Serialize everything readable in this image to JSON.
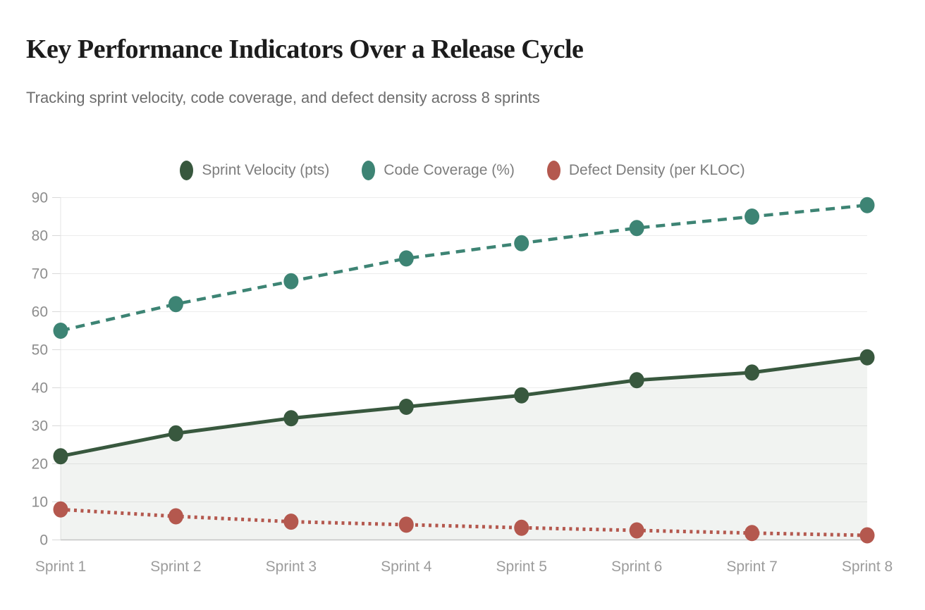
{
  "header": {
    "title": "Key Performance Indicators Over a Release Cycle",
    "subtitle": "Tracking sprint velocity, code coverage, and defect density across 8 sprints"
  },
  "chart_data": {
    "type": "line",
    "title": "Key Performance Indicators Over a Release Cycle",
    "subtitle": "Tracking sprint velocity, code coverage, and defect density across 8 sprints",
    "categories": [
      "Sprint 1",
      "Sprint 2",
      "Sprint 3",
      "Sprint 4",
      "Sprint 5",
      "Sprint 6",
      "Sprint 7",
      "Sprint 8"
    ],
    "series": [
      {
        "name": "Sprint Velocity (pts)",
        "values": [
          22,
          28,
          32,
          35,
          38,
          42,
          44,
          48
        ],
        "color": "#38583E",
        "line_style": "solid",
        "area_fill": true
      },
      {
        "name": "Code Coverage (%)",
        "values": [
          55,
          62,
          68,
          74,
          78,
          82,
          85,
          88
        ],
        "color": "#3D8474",
        "line_style": "dashed",
        "area_fill": false
      },
      {
        "name": "Defect Density (per KLOC)",
        "values": [
          8,
          6.2,
          4.8,
          4,
          3.2,
          2.5,
          1.8,
          1.2
        ],
        "color": "#B4584E",
        "line_style": "dotted",
        "area_fill": false
      }
    ],
    "xlabel": "",
    "ylabel": "",
    "ylim": [
      0,
      90
    ],
    "y_ticks": [
      0,
      10,
      20,
      30,
      40,
      50,
      60,
      70,
      80,
      90
    ],
    "grid": "horizontal",
    "legend_position": "top-center",
    "colors": {
      "grid_line": "#ececec",
      "axis_line": "#c9c9c9",
      "tick_label": "#8d8d8d",
      "x_tick_label": "#9c9c9c"
    }
  }
}
